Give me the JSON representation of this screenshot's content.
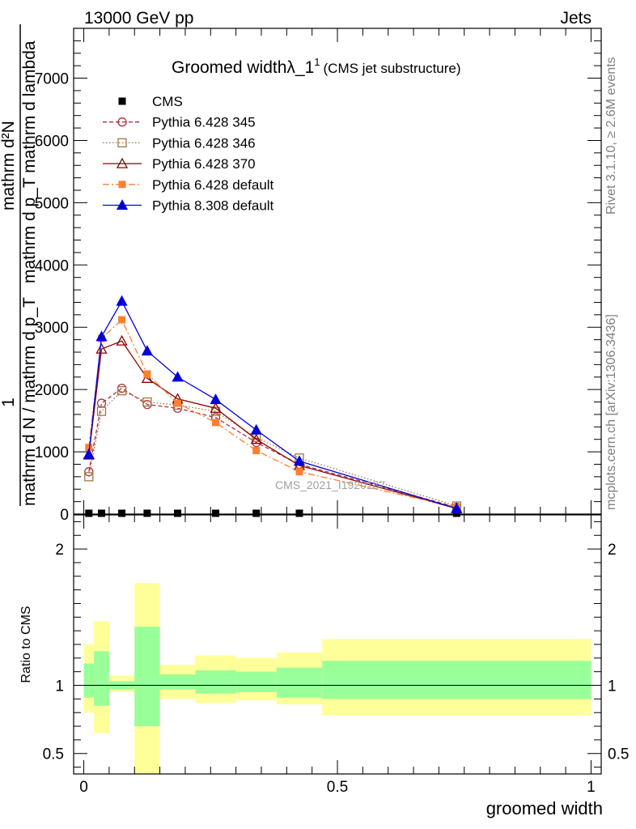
{
  "header": {
    "energy_label": "13000 GeV pp",
    "process_label": "Jets"
  },
  "side_labels": {
    "rivet": "Rivet 3.1.10, ≥ 2.6M events",
    "mcplots": "mcplots.cern.ch [arXiv:1306.3436]"
  },
  "chart_data": {
    "type": "line",
    "title_main": "Groomed widthλ_1",
    "title_sup": "1",
    "title_sub": "(CMS jet substructure)",
    "watermark": "CMS_2021_I1920187",
    "xlabel": "groomed width",
    "ylabel_top": "mathrm d²N",
    "ylabel_bottom": "mathrm d p_T mathrm d lambda",
    "ylabel_outer_num": "1",
    "ylabel_outer_den": "mathrm d N / mathrm d p_T",
    "ratio_ylabel": "Ratio to CMS",
    "xlim": [
      -0.02,
      1.02
    ],
    "ylim": [
      0,
      7800
    ],
    "ratio_ylim": [
      0.35,
      2.25
    ],
    "x_ticks": [
      0,
      0.5,
      1
    ],
    "x_tick_labels": [
      "0",
      "0.5",
      "1"
    ],
    "y_ticks": [
      0,
      1000,
      2000,
      3000,
      4000,
      5000,
      6000,
      7000
    ],
    "y_tick_labels": [
      "0",
      "1000",
      "2000",
      "3000",
      "4000",
      "5000",
      "6000",
      "7000"
    ],
    "ratio_ticks": [
      0.5,
      1,
      2
    ],
    "ratio_tick_labels": [
      "0.5",
      "1",
      "2"
    ],
    "bins": [
      [
        0.0,
        0.02
      ],
      [
        0.02,
        0.05
      ],
      [
        0.05,
        0.1
      ],
      [
        0.1,
        0.15
      ],
      [
        0.15,
        0.22
      ],
      [
        0.22,
        0.3
      ],
      [
        0.3,
        0.38
      ],
      [
        0.38,
        0.47
      ],
      [
        0.47,
        1.0
      ]
    ],
    "x": [
      0.01,
      0.035,
      0.075,
      0.125,
      0.185,
      0.26,
      0.34,
      0.425,
      0.735
    ],
    "legend": {
      "placement": "top-left"
    },
    "series": [
      {
        "name": "CMS",
        "color": "#000000",
        "marker": "square-filled",
        "line": "none",
        "values": [
          3,
          3,
          3,
          3,
          3,
          3,
          3,
          3,
          3
        ]
      },
      {
        "name": "Pythia 6.428 345",
        "color": "#b03040",
        "marker": "circle-open",
        "line": "dashed",
        "values": [
          680,
          1780,
          2020,
          1760,
          1700,
          1550,
          1150,
          800,
          110
        ]
      },
      {
        "name": "Pythia 6.428 346",
        "color": "#a07840",
        "marker": "square-open",
        "line": "dotted",
        "values": [
          600,
          1650,
          1980,
          1800,
          1750,
          1650,
          1230,
          900,
          130
        ]
      },
      {
        "name": "Pythia 6.428 370",
        "color": "#8b0000",
        "marker": "triangle-open",
        "line": "solid",
        "values": [
          950,
          2650,
          2780,
          2180,
          1850,
          1700,
          1200,
          780,
          90
        ]
      },
      {
        "name": "Pythia 6.428 default",
        "color": "#ff7f32",
        "marker": "square-filled",
        "line": "dashdot",
        "values": [
          1070,
          2820,
          3120,
          2250,
          1780,
          1470,
          1020,
          680,
          110
        ]
      },
      {
        "name": "Pythia 8.308 default",
        "color": "#0000dd",
        "marker": "triangle-filled",
        "line": "solid",
        "values": [
          960,
          2850,
          3420,
          2620,
          2200,
          1840,
          1350,
          850,
          90
        ]
      }
    ],
    "ratio_bands": {
      "inner_color": "#99ff99",
      "outer_color": "#ffff99",
      "inner": [
        [
          0.91,
          1.16
        ],
        [
          0.85,
          1.25
        ],
        [
          0.97,
          1.03
        ],
        [
          0.7,
          1.43
        ],
        [
          0.97,
          1.08
        ],
        [
          0.94,
          1.11
        ],
        [
          0.95,
          1.1
        ],
        [
          0.91,
          1.13
        ],
        [
          0.9,
          1.18
        ]
      ],
      "outer": [
        [
          0.8,
          1.3
        ],
        [
          0.65,
          1.47
        ],
        [
          0.95,
          1.07
        ],
        [
          0.35,
          1.75
        ],
        [
          0.9,
          1.15
        ],
        [
          0.87,
          1.22
        ],
        [
          0.89,
          1.2
        ],
        [
          0.86,
          1.24
        ],
        [
          0.78,
          1.34
        ]
      ]
    }
  }
}
